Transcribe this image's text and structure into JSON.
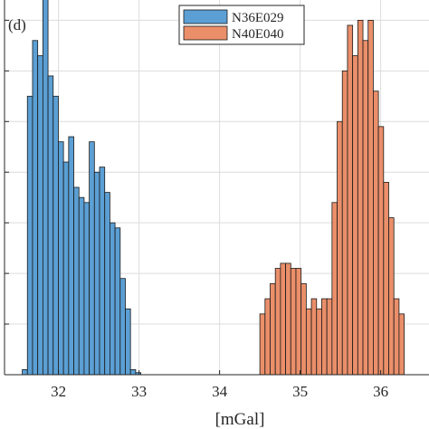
{
  "chart_data": {
    "type": "bar",
    "subtype": "histogram",
    "panel_label": "(d)",
    "xlabel": "[mGal]",
    "ylabel": "",
    "title": "",
    "xlim": [
      31.33,
      36.6
    ],
    "ylim": [
      0,
      74
    ],
    "xticks": [
      32,
      33,
      34,
      35,
      36
    ],
    "yticks": [
      0,
      10,
      20,
      30,
      40,
      50,
      60,
      70
    ],
    "grid": true,
    "legend_position": "top-center",
    "bin_width": 0.064,
    "series": [
      {
        "name": "N36E029",
        "color": "#5b9fd4",
        "bins_start": 31.55,
        "counts": [
          1,
          55,
          66,
          63,
          75,
          59,
          55,
          46,
          42,
          47,
          37,
          35,
          34,
          46,
          40,
          41,
          36,
          30,
          29,
          19,
          13,
          1,
          0.4
        ]
      },
      {
        "name": "N40E040",
        "color": "#ea8f6a",
        "bins_start": 34.5,
        "counts": [
          12,
          15,
          18,
          21,
          22,
          22,
          21,
          21,
          18,
          13,
          15,
          13,
          15,
          15,
          34,
          50,
          60,
          69,
          63,
          70,
          66,
          70,
          56,
          49,
          38,
          31,
          15,
          12
        ]
      }
    ]
  }
}
